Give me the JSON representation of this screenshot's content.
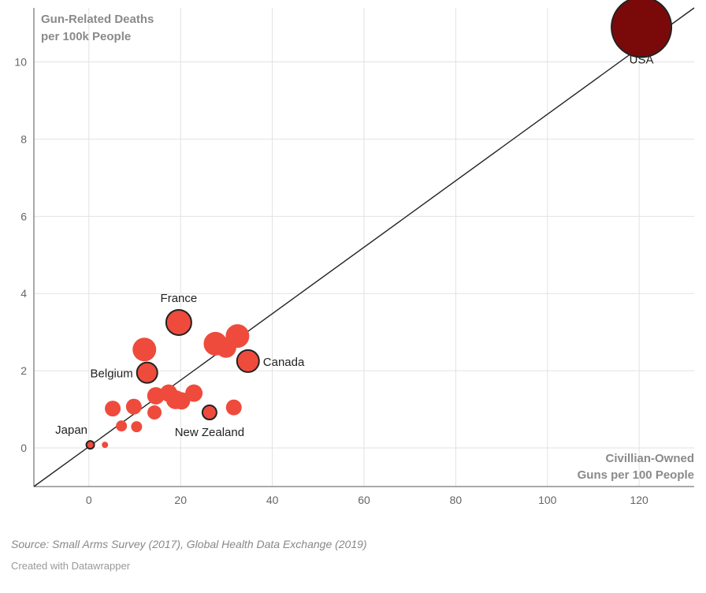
{
  "chart_data": {
    "type": "scatter",
    "ylabel_lines": [
      "Gun-Related Deaths",
      "per 100k People"
    ],
    "xlabel_lines": [
      "Civillian-Owned",
      "Guns per 100 People"
    ],
    "xlim": [
      -12,
      132
    ],
    "ylim": [
      -1,
      11.4
    ],
    "x_ticks": [
      0,
      20,
      40,
      60,
      80,
      100,
      120
    ],
    "y_ticks": [
      0,
      2,
      4,
      6,
      8,
      10
    ],
    "grid": true,
    "trend_line": {
      "from": [
        -12,
        -1
      ],
      "to": [
        132,
        11.4
      ]
    },
    "series_colors": {
      "default": "#ee4b3c",
      "highlight": "#7a0a0a",
      "outline": "#222222"
    },
    "points": [
      {
        "x": 120.5,
        "y": 10.9,
        "size": 38,
        "label": "USA",
        "highlight": true,
        "outlined": true
      },
      {
        "x": 19.6,
        "y": 3.25,
        "size": 16,
        "label": "France",
        "outlined": true
      },
      {
        "x": 34.7,
        "y": 2.25,
        "size": 14,
        "label": "Canada",
        "outlined": true
      },
      {
        "x": 12.7,
        "y": 1.95,
        "size": 13,
        "label": "Belgium",
        "outlined": true
      },
      {
        "x": 26.3,
        "y": 0.92,
        "size": 9,
        "label": "New Zealand",
        "outlined": true
      },
      {
        "x": 0.3,
        "y": 0.08,
        "size": 5,
        "label": "Japan",
        "outlined": true
      },
      {
        "x": 12.1,
        "y": 2.55,
        "size": 15
      },
      {
        "x": 27.6,
        "y": 2.7,
        "size": 15
      },
      {
        "x": 29.9,
        "y": 2.6,
        "size": 13
      },
      {
        "x": 32.4,
        "y": 2.9,
        "size": 15
      },
      {
        "x": 5.2,
        "y": 1.02,
        "size": 10
      },
      {
        "x": 9.8,
        "y": 1.07,
        "size": 10
      },
      {
        "x": 14.3,
        "y": 0.92,
        "size": 9
      },
      {
        "x": 14.6,
        "y": 1.35,
        "size": 11
      },
      {
        "x": 17.4,
        "y": 1.42,
        "size": 11
      },
      {
        "x": 18.9,
        "y": 1.25,
        "size": 12
      },
      {
        "x": 20.2,
        "y": 1.22,
        "size": 11
      },
      {
        "x": 22.9,
        "y": 1.42,
        "size": 11
      },
      {
        "x": 31.6,
        "y": 1.05,
        "size": 10
      },
      {
        "x": 7.1,
        "y": 0.57,
        "size": 7
      },
      {
        "x": 10.4,
        "y": 0.55,
        "size": 7
      },
      {
        "x": 3.5,
        "y": 0.08,
        "size": 4
      }
    ]
  },
  "footer": {
    "source": "Source: Small Arms Survey (2017), Global Health Data Exchange (2019)",
    "credit": "Created with Datawrapper"
  }
}
